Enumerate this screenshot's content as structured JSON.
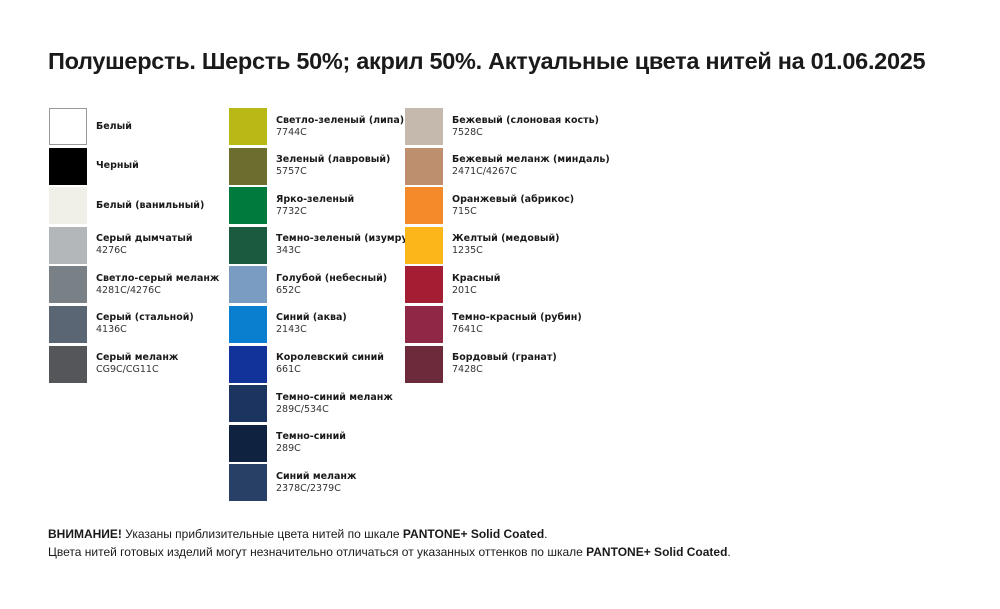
{
  "title": "Полушерсть. Шерсть 50%; акрил 50%. Актуальные цвета нитей на 01.06.2025",
  "columns": [
    [
      {
        "name": "Белый",
        "code": "",
        "color": "#ffffff"
      },
      {
        "name": "Черный",
        "code": "",
        "color": "#000000"
      },
      {
        "name": "Белый (ванильный)",
        "code": "",
        "color": "#f0f0e8"
      },
      {
        "name": "Серый дымчатый",
        "code": "4276C",
        "color": "#b4b7ba"
      },
      {
        "name": "Светло-серый меланж",
        "code": "4281C/4276C",
        "color": "#7a8186"
      },
      {
        "name": "Серый (стальной)",
        "code": "4136C",
        "color": "#5a6673"
      },
      {
        "name": "Серый меланж",
        "code": "CG9C/CG11C",
        "color": "#545659"
      }
    ],
    [
      {
        "name": "Светло-зеленый (липа)",
        "code": "7744C",
        "color": "#b8b817"
      },
      {
        "name": "Зеленый (лавровый)",
        "code": "5757C",
        "color": "#6b6e2e"
      },
      {
        "name": "Ярко-зеленый",
        "code": "7732C",
        "color": "#007a3d"
      },
      {
        "name": "Темно-зеленый (изумруд)",
        "code": "343C",
        "color": "#1b5a3e"
      },
      {
        "name": "Голубой (небесный)",
        "code": "652C",
        "color": "#7a9bc2"
      },
      {
        "name": "Синий (аква)",
        "code": "2143C",
        "color": "#0a7fcf"
      },
      {
        "name": "Королевский синий",
        "code": "661C",
        "color": "#12339a"
      },
      {
        "name": "Темно-синий меланж",
        "code": "289C/534C",
        "color": "#1c3560"
      },
      {
        "name": "Темно-синий",
        "code": "289C",
        "color": "#0f2240"
      },
      {
        "name": "Синий меланж",
        "code": "2378C/2379C",
        "color": "#283f66"
      }
    ],
    [
      {
        "name": "Бежевый (слоновая кость)",
        "code": "7528C",
        "color": "#c4b9ac"
      },
      {
        "name": "Бежевый меланж (миндаль)",
        "code": "2471C/4267C",
        "color": "#bd8f6f"
      },
      {
        "name": "Оранжевый (абрикос)",
        "code": "715C",
        "color": "#f58a2a"
      },
      {
        "name": "Желтый (медовый)",
        "code": "1235C",
        "color": "#fcb61a"
      },
      {
        "name": "Красный",
        "code": "201C",
        "color": "#a51d33"
      },
      {
        "name": "Темно-красный (рубин)",
        "code": "7641C",
        "color": "#8f2746"
      },
      {
        "name": "Бордовый (гранат)",
        "code": "7428C",
        "color": "#6b2b3a"
      }
    ]
  ],
  "note": {
    "line1_bold": "ВНИМАНИЕ!",
    "line1_text": " Указаны приблизительные цвета нитей по шкале ",
    "line1_scale": "PANTONE+ Solid Coated",
    "line1_end": ".",
    "line2_text": "Цвета нитей готовых изделий могут незначительно отличаться от указанных оттенков по шкале ",
    "line2_scale": "PANTONE+ Solid Coated",
    "line2_end": "."
  }
}
